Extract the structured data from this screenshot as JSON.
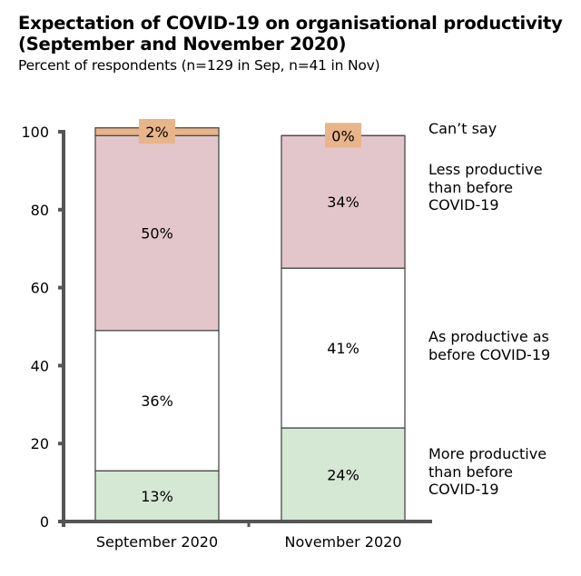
{
  "chart_data": {
    "type": "bar",
    "stacked": true,
    "title": "Expectation of COVID-19 on organisational productivity (September and November 2020)",
    "title_lines": [
      "Expectation of COVID-19 on organisational productivity",
      "(September and November 2020)"
    ],
    "subtitle": "Percent of respondents (n=129 in Sep, n=41 in Nov)",
    "xlabel": "",
    "ylabel": "",
    "ylim": [
      0,
      100
    ],
    "yticks": [
      0,
      20,
      40,
      60,
      80,
      100
    ],
    "grid": false,
    "legend_placement": "right",
    "categories": [
      "September 2020",
      "November 2020"
    ],
    "series": [
      {
        "name": "More productive than before COVID-19",
        "legend_text": "More productive\nthan before\nCOVID-19",
        "color": "#d5e8d4",
        "values": [
          13,
          24
        ],
        "labels": [
          "13%",
          "24%"
        ]
      },
      {
        "name": "As productive as before COVID-19",
        "legend_text": "As productive as\nbefore COVID-19",
        "color": "#ffffff",
        "values": [
          36,
          41
        ],
        "labels": [
          "36%",
          "41%"
        ]
      },
      {
        "name": "Less productive than before COVID-19",
        "legend_text": "Less productive\nthan before\nCOVID-19",
        "color": "#e3c6cb",
        "values": [
          50,
          34
        ],
        "labels": [
          "50%",
          "34%"
        ]
      },
      {
        "name": "Can't say",
        "legend_text": "Can’t say",
        "color": "#e8b489",
        "values": [
          2,
          0
        ],
        "labels": [
          "2%",
          "0%"
        ]
      }
    ],
    "colors": {
      "axis": "#555555",
      "bar_outline": "#4a4a4a",
      "label_box": "#e8b489"
    }
  }
}
